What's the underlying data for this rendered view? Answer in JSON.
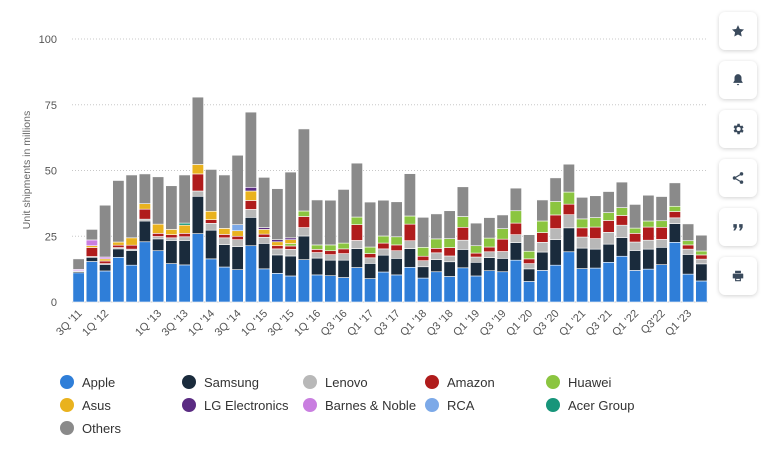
{
  "toolbar": {
    "icons": [
      "star-icon",
      "bell-icon",
      "gear-icon",
      "share-icon",
      "quote-icon",
      "print-icon"
    ]
  },
  "chart_data": {
    "type": "bar",
    "stacked": true,
    "ylabel": "Unit shipments in millions",
    "ylim": [
      0,
      100
    ],
    "yticks": [
      0,
      25,
      50,
      75,
      100
    ],
    "grid": true,
    "legend_position": "bottom",
    "categories": [
      "3Q '11",
      "4Q '11",
      "1Q '12",
      "2Q '12",
      "3Q '12",
      "4Q '12",
      "1Q '13",
      "2Q '13",
      "3Q '13",
      "4Q '13",
      "1Q '14",
      "2Q '14",
      "3Q '14",
      "4Q '14",
      "1Q '15",
      "2Q '15",
      "3Q '15",
      "4Q '15",
      "1Q '16",
      "Q2 '16",
      "Q3 '16",
      "Q4 '16",
      "Q1 '17",
      "Q2 '17",
      "Q3 '17",
      "Q4 '17",
      "Q1 '18",
      "Q2 '18",
      "Q3 '18",
      "Q4 '18",
      "Q1 '19",
      "Q2 '19",
      "Q3 '19",
      "Q4 '19",
      "Q1 '20",
      "Q2 '20",
      "Q3 '20",
      "Q4 '20",
      "Q1 '21",
      "Q2 '21",
      "Q3 '21",
      "Q4 '21",
      "Q1 '22",
      "Q2 '22",
      "Q3 '22",
      "Q4 '22",
      "Q1 '23",
      "Q2 '23"
    ],
    "xtick_labels": [
      "3Q '11",
      "1Q '12",
      "1Q '13",
      "3Q '13",
      "1Q '14",
      "3Q '14",
      "1Q '15",
      "3Q '15",
      "1Q '16",
      "Q3 '16",
      "Q1 '17",
      "Q3 '17",
      "Q1 '18",
      "Q3 '18",
      "Q1 '19",
      "Q3 '19",
      "Q1 '20",
      "Q3 '20",
      "Q1 '21",
      "Q3 '21",
      "Q1 '22",
      "Q3'22",
      "Q1 '23"
    ],
    "series": [
      {
        "name": "Apple",
        "color": "#2f7ed8",
        "values": [
          11.1,
          15.4,
          11.8,
          17.0,
          14.0,
          22.9,
          19.5,
          14.6,
          14.1,
          26.0,
          16.4,
          13.3,
          12.3,
          21.4,
          12.6,
          10.9,
          9.9,
          16.1,
          10.3,
          10.0,
          9.3,
          13.1,
          8.9,
          11.4,
          10.3,
          13.2,
          9.1,
          11.5,
          9.7,
          13.0,
          9.9,
          11.9,
          11.5,
          15.9,
          7.8,
          12.0,
          14.0,
          19.1,
          12.7,
          12.9,
          15.1,
          17.4,
          12.0,
          12.5,
          14.2,
          22.7,
          10.6,
          8.0
        ]
      },
      {
        "name": "Samsung",
        "color": "#1a2b3c",
        "values": [
          0.5,
          1.6,
          2.5,
          3.2,
          5.6,
          7.9,
          4.5,
          8.8,
          9.3,
          14.2,
          10.9,
          8.5,
          8.8,
          10.8,
          9.7,
          7.0,
          7.6,
          9.0,
          6.4,
          5.9,
          6.6,
          7.2,
          5.8,
          6.4,
          6.3,
          7.1,
          4.3,
          4.6,
          5.6,
          7.0,
          5.2,
          5.0,
          5.1,
          6.7,
          4.8,
          7.0,
          9.7,
          9.1,
          7.8,
          7.2,
          6.9,
          7.1,
          7.6,
          7.6,
          6.6,
          7.1,
          7.5,
          6.5
        ]
      },
      {
        "name": "Lenovo",
        "color": "#b8b8b8",
        "values": [
          0.2,
          0.3,
          0.3,
          0.5,
          0.5,
          0.7,
          0.9,
          1.0,
          1.4,
          2.0,
          2.6,
          2.6,
          2.6,
          3.0,
          2.3,
          2.3,
          2.5,
          3.2,
          2.1,
          2.1,
          2.5,
          3.1,
          2.1,
          2.4,
          2.9,
          3.0,
          2.3,
          2.6,
          2.2,
          3.5,
          2.0,
          2.2,
          2.6,
          3.0,
          2.0,
          3.7,
          4.2,
          5.0,
          4.2,
          4.0,
          4.5,
          4.7,
          3.2,
          3.4,
          3.0,
          2.2,
          2.0,
          1.8
        ]
      },
      {
        "name": "Amazon",
        "color": "#b01c1c",
        "values": [
          0.1,
          3.4,
          1.0,
          0.9,
          1.5,
          3.8,
          1.2,
          1.2,
          1.3,
          6.5,
          1.4,
          1.3,
          1.3,
          3.4,
          1.2,
          1.2,
          1.3,
          4.2,
          1.2,
          1.5,
          1.8,
          6.0,
          1.6,
          2.2,
          2.2,
          6.3,
          1.7,
          1.7,
          3.2,
          4.9,
          1.5,
          1.8,
          4.7,
          4.4,
          1.8,
          3.7,
          5.2,
          4.0,
          3.5,
          4.4,
          4.5,
          3.7,
          3.3,
          5.0,
          4.6,
          2.4,
          1.6,
          1.6
        ]
      },
      {
        "name": "Huawei",
        "color": "#8bc540",
        "values": [
          0,
          0,
          0,
          0,
          0,
          0,
          0,
          0,
          0,
          0,
          0,
          0,
          0,
          0,
          0,
          0,
          0.9,
          2.1,
          1.7,
          2.2,
          2.2,
          2.9,
          2.5,
          2.7,
          3.1,
          3.1,
          3.4,
          3.6,
          3.4,
          4.1,
          2.8,
          3.4,
          4.0,
          4.7,
          2.9,
          4.4,
          5.1,
          4.6,
          3.4,
          3.6,
          3.0,
          3.0,
          2.0,
          2.3,
          2.5,
          2.0,
          1.6,
          1.5
        ]
      },
      {
        "name": "Asus",
        "color": "#e9b21e",
        "values": [
          0,
          0.7,
          0.8,
          1.2,
          2.8,
          2.1,
          3.5,
          2.0,
          3.1,
          3.6,
          3.2,
          2.3,
          2.1,
          3.6,
          1.8,
          1.5,
          1.5,
          0,
          0,
          0,
          0,
          0,
          0,
          0,
          0,
          0,
          0,
          0,
          0,
          0,
          0,
          0,
          0,
          0,
          0,
          0,
          0,
          0,
          0,
          0,
          0,
          0,
          0,
          0,
          0,
          0,
          0,
          0
        ]
      },
      {
        "name": "LG Electronics",
        "color": "#5a2b82",
        "values": [
          0,
          0,
          0,
          0,
          0,
          0,
          0,
          0,
          0,
          0,
          0,
          0,
          0,
          1.4,
          0.7,
          0.8,
          0.7,
          0,
          0,
          0,
          0,
          0,
          0,
          0,
          0,
          0,
          0,
          0,
          0,
          0,
          0,
          0,
          0,
          0,
          0,
          0,
          0,
          0,
          0,
          0,
          0,
          0,
          0,
          0,
          0,
          0,
          0,
          0
        ]
      },
      {
        "name": "Barnes & Noble",
        "color": "#c97ee0",
        "values": [
          0.5,
          2.2,
          0.7,
          0,
          0,
          0,
          0,
          0,
          0,
          0,
          0,
          0,
          0,
          0,
          0,
          0,
          0,
          0,
          0,
          0,
          0,
          0,
          0,
          0,
          0,
          0,
          0,
          0,
          0,
          0,
          0,
          0,
          0,
          0,
          0,
          0,
          0,
          0,
          0,
          0,
          0,
          0,
          0,
          0,
          0,
          0,
          0,
          0
        ]
      },
      {
        "name": "RCA",
        "color": "#7ca9e8",
        "values": [
          0,
          0,
          0,
          0,
          0,
          0,
          0,
          0,
          0,
          0,
          0,
          0,
          2.3,
          0,
          0,
          0,
          0,
          0,
          0,
          0,
          0,
          0,
          0,
          0,
          0,
          0,
          0,
          0,
          0,
          0,
          0,
          0,
          0,
          0,
          0,
          0,
          0,
          0,
          0,
          0,
          0,
          0,
          0,
          0,
          0,
          0,
          0,
          0
        ]
      },
      {
        "name": "Acer Group",
        "color": "#17957a",
        "values": [
          0,
          0,
          0,
          0,
          0,
          0,
          0,
          0,
          0.8,
          0,
          0,
          0,
          0,
          0,
          0,
          0,
          0,
          0,
          0,
          0,
          0,
          0,
          0,
          0,
          0,
          0,
          0,
          0,
          0,
          0,
          0,
          0,
          0,
          0,
          0,
          0,
          0,
          0,
          0,
          0,
          0,
          0,
          0,
          0,
          0,
          0,
          0,
          0
        ]
      },
      {
        "name": "Others",
        "color": "#8a8a8a",
        "values": [
          4.0,
          4.0,
          19.7,
          23.4,
          23.9,
          11.3,
          18.0,
          16.6,
          18.3,
          25.6,
          15.9,
          20.3,
          26.4,
          28.6,
          19.1,
          19.4,
          25.0,
          31.2,
          17.1,
          17.0,
          20.4,
          20.5,
          17.1,
          13.6,
          13.3,
          16.1,
          11.4,
          9.5,
          10.6,
          11.3,
          8.6,
          7.8,
          5.2,
          8.6,
          6.3,
          8.0,
          9.0,
          10.6,
          8.2,
          8.3,
          8.0,
          9.7,
          9.0,
          9.8,
          9.2,
          8.9,
          6.4,
          6.0
        ]
      }
    ]
  }
}
